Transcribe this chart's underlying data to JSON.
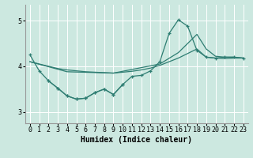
{
  "xlabel": "Humidex (Indice chaleur)",
  "bg_color": "#cce8e0",
  "grid_color": "#ffffff",
  "line_color": "#2e7d72",
  "xlim": [
    -0.5,
    23.5
  ],
  "ylim": [
    2.75,
    5.35
  ],
  "yticks": [
    3,
    4,
    5
  ],
  "xticks": [
    0,
    1,
    2,
    3,
    4,
    5,
    6,
    7,
    8,
    9,
    10,
    11,
    12,
    13,
    14,
    15,
    16,
    17,
    18,
    19,
    20,
    21,
    22,
    23
  ],
  "line_zigzag_x": [
    0,
    1,
    2,
    3,
    4,
    5,
    6,
    7,
    8,
    9,
    10,
    11,
    12,
    13,
    14,
    15,
    16,
    17,
    18,
    19,
    20,
    21,
    22,
    23
  ],
  "line_zigzag_y": [
    4.25,
    3.9,
    3.68,
    3.52,
    3.35,
    3.28,
    3.3,
    3.42,
    3.5,
    3.38,
    3.6,
    3.78,
    3.8,
    3.9,
    4.1,
    4.72,
    5.02,
    4.88,
    4.35,
    4.2,
    4.18,
    4.2,
    4.2,
    4.18
  ],
  "line_flat_x": [
    0,
    1,
    2,
    3,
    4,
    5,
    6,
    7,
    8,
    9,
    10,
    11,
    12,
    13,
    14,
    15,
    16,
    17,
    18,
    19,
    20,
    21,
    22,
    23
  ],
  "line_flat_y": [
    4.1,
    4.05,
    4.0,
    3.95,
    3.92,
    3.9,
    3.88,
    3.87,
    3.86,
    3.85,
    3.87,
    3.89,
    3.92,
    3.96,
    4.02,
    4.1,
    4.18,
    4.28,
    4.38,
    4.2,
    4.18,
    4.17,
    4.18,
    4.18
  ],
  "line_upper_x": [
    0,
    4,
    9,
    14,
    16,
    18,
    19,
    20,
    21,
    22,
    23
  ],
  "line_upper_y": [
    4.1,
    3.88,
    3.85,
    4.05,
    4.3,
    4.7,
    4.38,
    4.22,
    4.2,
    4.2,
    4.18
  ],
  "line_lower_x": [
    2,
    3,
    4,
    5,
    6,
    7,
    8,
    9,
    10
  ],
  "line_lower_y": [
    3.68,
    3.52,
    3.35,
    3.28,
    3.3,
    3.42,
    3.5,
    3.38,
    3.6
  ]
}
